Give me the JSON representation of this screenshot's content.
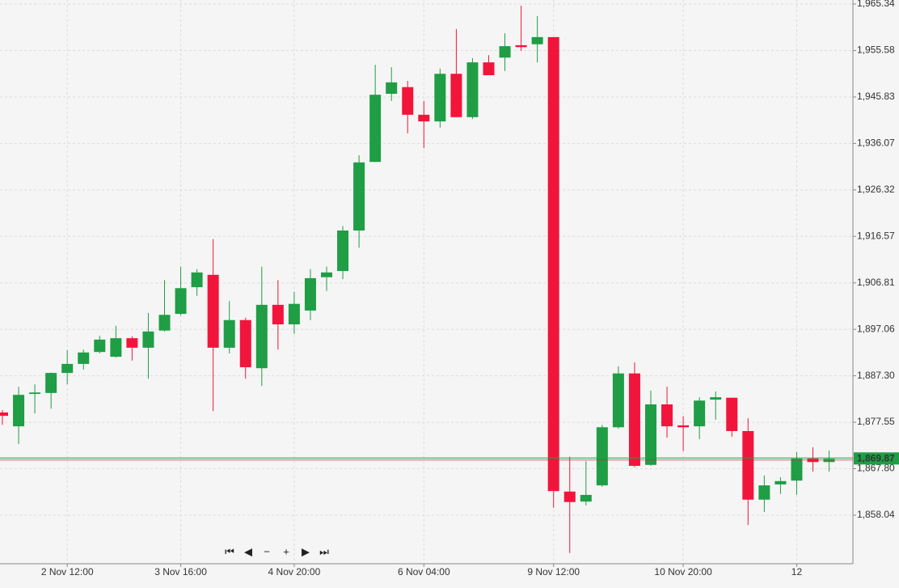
{
  "chart_data": {
    "type": "candlestick",
    "up_color": "#1f9e45",
    "down_color": "#f2153b",
    "grid": true,
    "categories": [
      null,
      null,
      null,
      null,
      "2 Nov 12:00",
      null,
      null,
      null,
      null,
      null,
      null,
      "3 Nov 16:00",
      null,
      null,
      null,
      null,
      null,
      null,
      "4 Nov 20:00",
      null,
      null,
      null,
      null,
      null,
      null,
      null,
      "6 Nov 04:00",
      null,
      null,
      null,
      null,
      null,
      null,
      null,
      "9 Nov 12:00",
      null,
      null,
      null,
      null,
      null,
      null,
      null,
      "10 Nov 20:00",
      null,
      null,
      null,
      null,
      null,
      null,
      "12",
      null,
      null
    ],
    "open": [
      1879.6,
      1876.7,
      1883.5,
      1883.7,
      1887.9,
      1889.8,
      1892.3,
      1891.3,
      1895.2,
      1893.2,
      1896.8,
      1900.3,
      1905.9,
      1908.5,
      1893.2,
      1899.0,
      1888.9,
      1902.2,
      1898.1,
      1901.0,
      1908.0,
      1909.3,
      1917.8,
      1932.2,
      1946.5,
      1947.9,
      1942.1,
      1940.7,
      1950.7,
      1941.6,
      1953.1,
      1954.1,
      1956.7,
      1956.9,
      1958.4,
      1863.0,
      1860.9,
      1864.3,
      1876.5,
      1887.8,
      1868.6,
      1881.3,
      1876.9,
      1876.7,
      1882.3,
      1882.7,
      1875.7,
      1861.3,
      1864.5,
      1865.3,
      1869.9,
      1869.2
    ],
    "high": [
      1880.1,
      1885.0,
      1885.5,
      1888.0,
      1892.7,
      1892.8,
      1895.7,
      1897.8,
      1895.6,
      1900.5,
      1907.4,
      1910.2,
      1909.7,
      1916.0,
      1903.0,
      1899.5,
      1910.2,
      1907.4,
      1904.9,
      1909.7,
      1910.2,
      1918.7,
      1933.6,
      1952.6,
      1952.1,
      1949.2,
      1945.0,
      1951.8,
      1960.1,
      1954.0,
      1954.6,
      1959.2,
      1965.0,
      1962.8,
      1958.4,
      1870.3,
      1869.4,
      1877.0,
      1889.3,
      1890.1,
      1884.2,
      1885.0,
      1878.8,
      1882.8,
      1884.0,
      1882.7,
      1878.4,
      1866.4,
      1866.0,
      1871.3,
      1872.3,
      1871.6
    ],
    "low": [
      1877.0,
      1873.0,
      1879.4,
      1880.4,
      1885.5,
      1888.6,
      1892.0,
      1891.1,
      1890.5,
      1886.7,
      1896.6,
      1900.0,
      1904.1,
      1879.9,
      1892.0,
      1886.7,
      1885.2,
      1892.8,
      1896.1,
      1899.0,
      1905.1,
      1907.6,
      1914.2,
      1932.2,
      1945.0,
      1938.2,
      1935.1,
      1939.4,
      1941.6,
      1941.2,
      1950.4,
      1951.3,
      1955.5,
      1953.1,
      1859.6,
      1850.1,
      1860.1,
      1864.0,
      1876.2,
      1868.1,
      1868.4,
      1874.3,
      1871.5,
      1874.0,
      1878.1,
      1874.5,
      1856.0,
      1858.7,
      1862.5,
      1862.3,
      1867.2,
      1867.2
    ],
    "close": [
      1878.9,
      1883.3,
      1883.8,
      1887.9,
      1889.8,
      1892.2,
      1894.9,
      1895.2,
      1893.2,
      1896.6,
      1900.1,
      1905.7,
      1909.0,
      1893.2,
      1899.0,
      1889.1,
      1902.2,
      1898.1,
      1902.4,
      1907.8,
      1909.0,
      1917.8,
      1932.1,
      1946.3,
      1948.9,
      1942.1,
      1940.7,
      1950.7,
      1941.6,
      1953.1,
      1950.4,
      1956.5,
      1956.3,
      1958.4,
      1863.1,
      1860.8,
      1862.3,
      1876.5,
      1887.8,
      1868.4,
      1881.3,
      1876.7,
      1876.5,
      1882.1,
      1882.8,
      1875.7,
      1861.3,
      1864.3,
      1865.2,
      1869.9,
      1869.2,
      1869.87
    ],
    "ylim": [
      1847.85,
      1966.19
    ],
    "yticks": [
      {
        "value": 1965.34,
        "label": "1,965.34"
      },
      {
        "value": 1955.58,
        "label": "1,955.58"
      },
      {
        "value": 1945.83,
        "label": "1,945.83"
      },
      {
        "value": 1936.07,
        "label": "1,936.07"
      },
      {
        "value": 1926.32,
        "label": "1,926.32"
      },
      {
        "value": 1916.57,
        "label": "1,916.57"
      },
      {
        "value": 1906.81,
        "label": "1,906.81"
      },
      {
        "value": 1897.06,
        "label": "1,897.06"
      },
      {
        "value": 1887.3,
        "label": "1,887.30"
      },
      {
        "value": 1877.55,
        "label": "1,877.55"
      },
      {
        "value": 1867.8,
        "label": "1,867.80"
      },
      {
        "value": 1858.04,
        "label": "1,858.04"
      }
    ],
    "current_price": {
      "value": 1869.87,
      "label": "1,869.87"
    }
  }
}
